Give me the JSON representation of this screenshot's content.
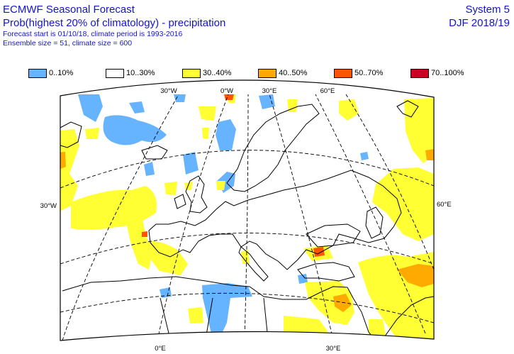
{
  "header": {
    "title": "ECMWF Seasonal Forecast",
    "subtitle": "Prob(highest 20% of climatology) - precipitation",
    "forecast_info": "Forecast start is 01/10/18, climate period is 1993-2016",
    "ensemble_info": "Ensemble size = 51, climate size = 600",
    "system": "System 5",
    "season": "DJF 2018/19"
  },
  "legend": {
    "items": [
      {
        "label": "0..10%",
        "color": "#66b3ff"
      },
      {
        "label": "10..30%",
        "color": "#ffffff"
      },
      {
        "label": "30..40%",
        "color": "#ffff33"
      },
      {
        "label": "40..50%",
        "color": "#ffaa00"
      },
      {
        "label": "50..70%",
        "color": "#ff5500"
      },
      {
        "label": "70..100%",
        "color": "#cc0022"
      }
    ]
  },
  "map": {
    "top_labels": [
      "30°W",
      "0°W",
      "30°E",
      "60°E"
    ],
    "bottom_labels": [
      "0°E",
      "30°E"
    ],
    "left_label": "30°W",
    "right_label": "60°E"
  }
}
